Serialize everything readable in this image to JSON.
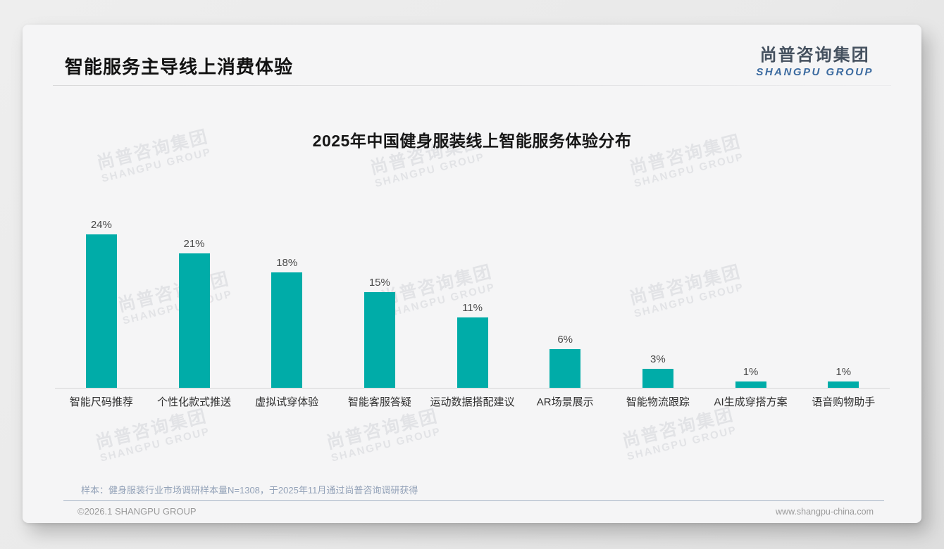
{
  "header": {
    "title": "智能服务主导线上消费体验",
    "logo_cn": "尚普咨询集团",
    "logo_en": "SHANGPU GROUP"
  },
  "watermark": {
    "line1": "尚普咨询集团",
    "line2": "SHANGPU GROUP"
  },
  "chart_data": {
    "type": "bar",
    "title": "2025年中国健身服装线上智能服务体验分布",
    "categories": [
      "智能尺码推荐",
      "个性化款式推送",
      "虚拟试穿体验",
      "智能客服答疑",
      "运动数据搭配建议",
      "AR场景展示",
      "智能物流跟踪",
      "AI生成穿搭方案",
      "语音购物助手"
    ],
    "values": [
      24,
      21,
      18,
      15,
      11,
      6,
      3,
      1,
      1
    ],
    "value_labels": [
      "24%",
      "21%",
      "18%",
      "15%",
      "11%",
      "6%",
      "3%",
      "1%",
      "1%"
    ],
    "unit": "%",
    "ylim": [
      0,
      25
    ],
    "grid": false,
    "legend": false,
    "xlabel": "",
    "ylabel": "",
    "bar_color": "#00ACA8"
  },
  "source_note": "样本：健身服装行业市场调研样本量N=1308，于2025年11月通过尚普咨询调研获得",
  "footer": {
    "copyright": "©2026.1 SHANGPU GROUP",
    "website": "www.shangpu-china.com"
  },
  "colors": {
    "bar": "#00ACA8",
    "logo_dark": "#45515F",
    "logo_blue": "#3C6BA0",
    "note_blue": "#93A2B8",
    "card_bg": "#F5F5F6",
    "page_bg": "#E9E9E9"
  }
}
